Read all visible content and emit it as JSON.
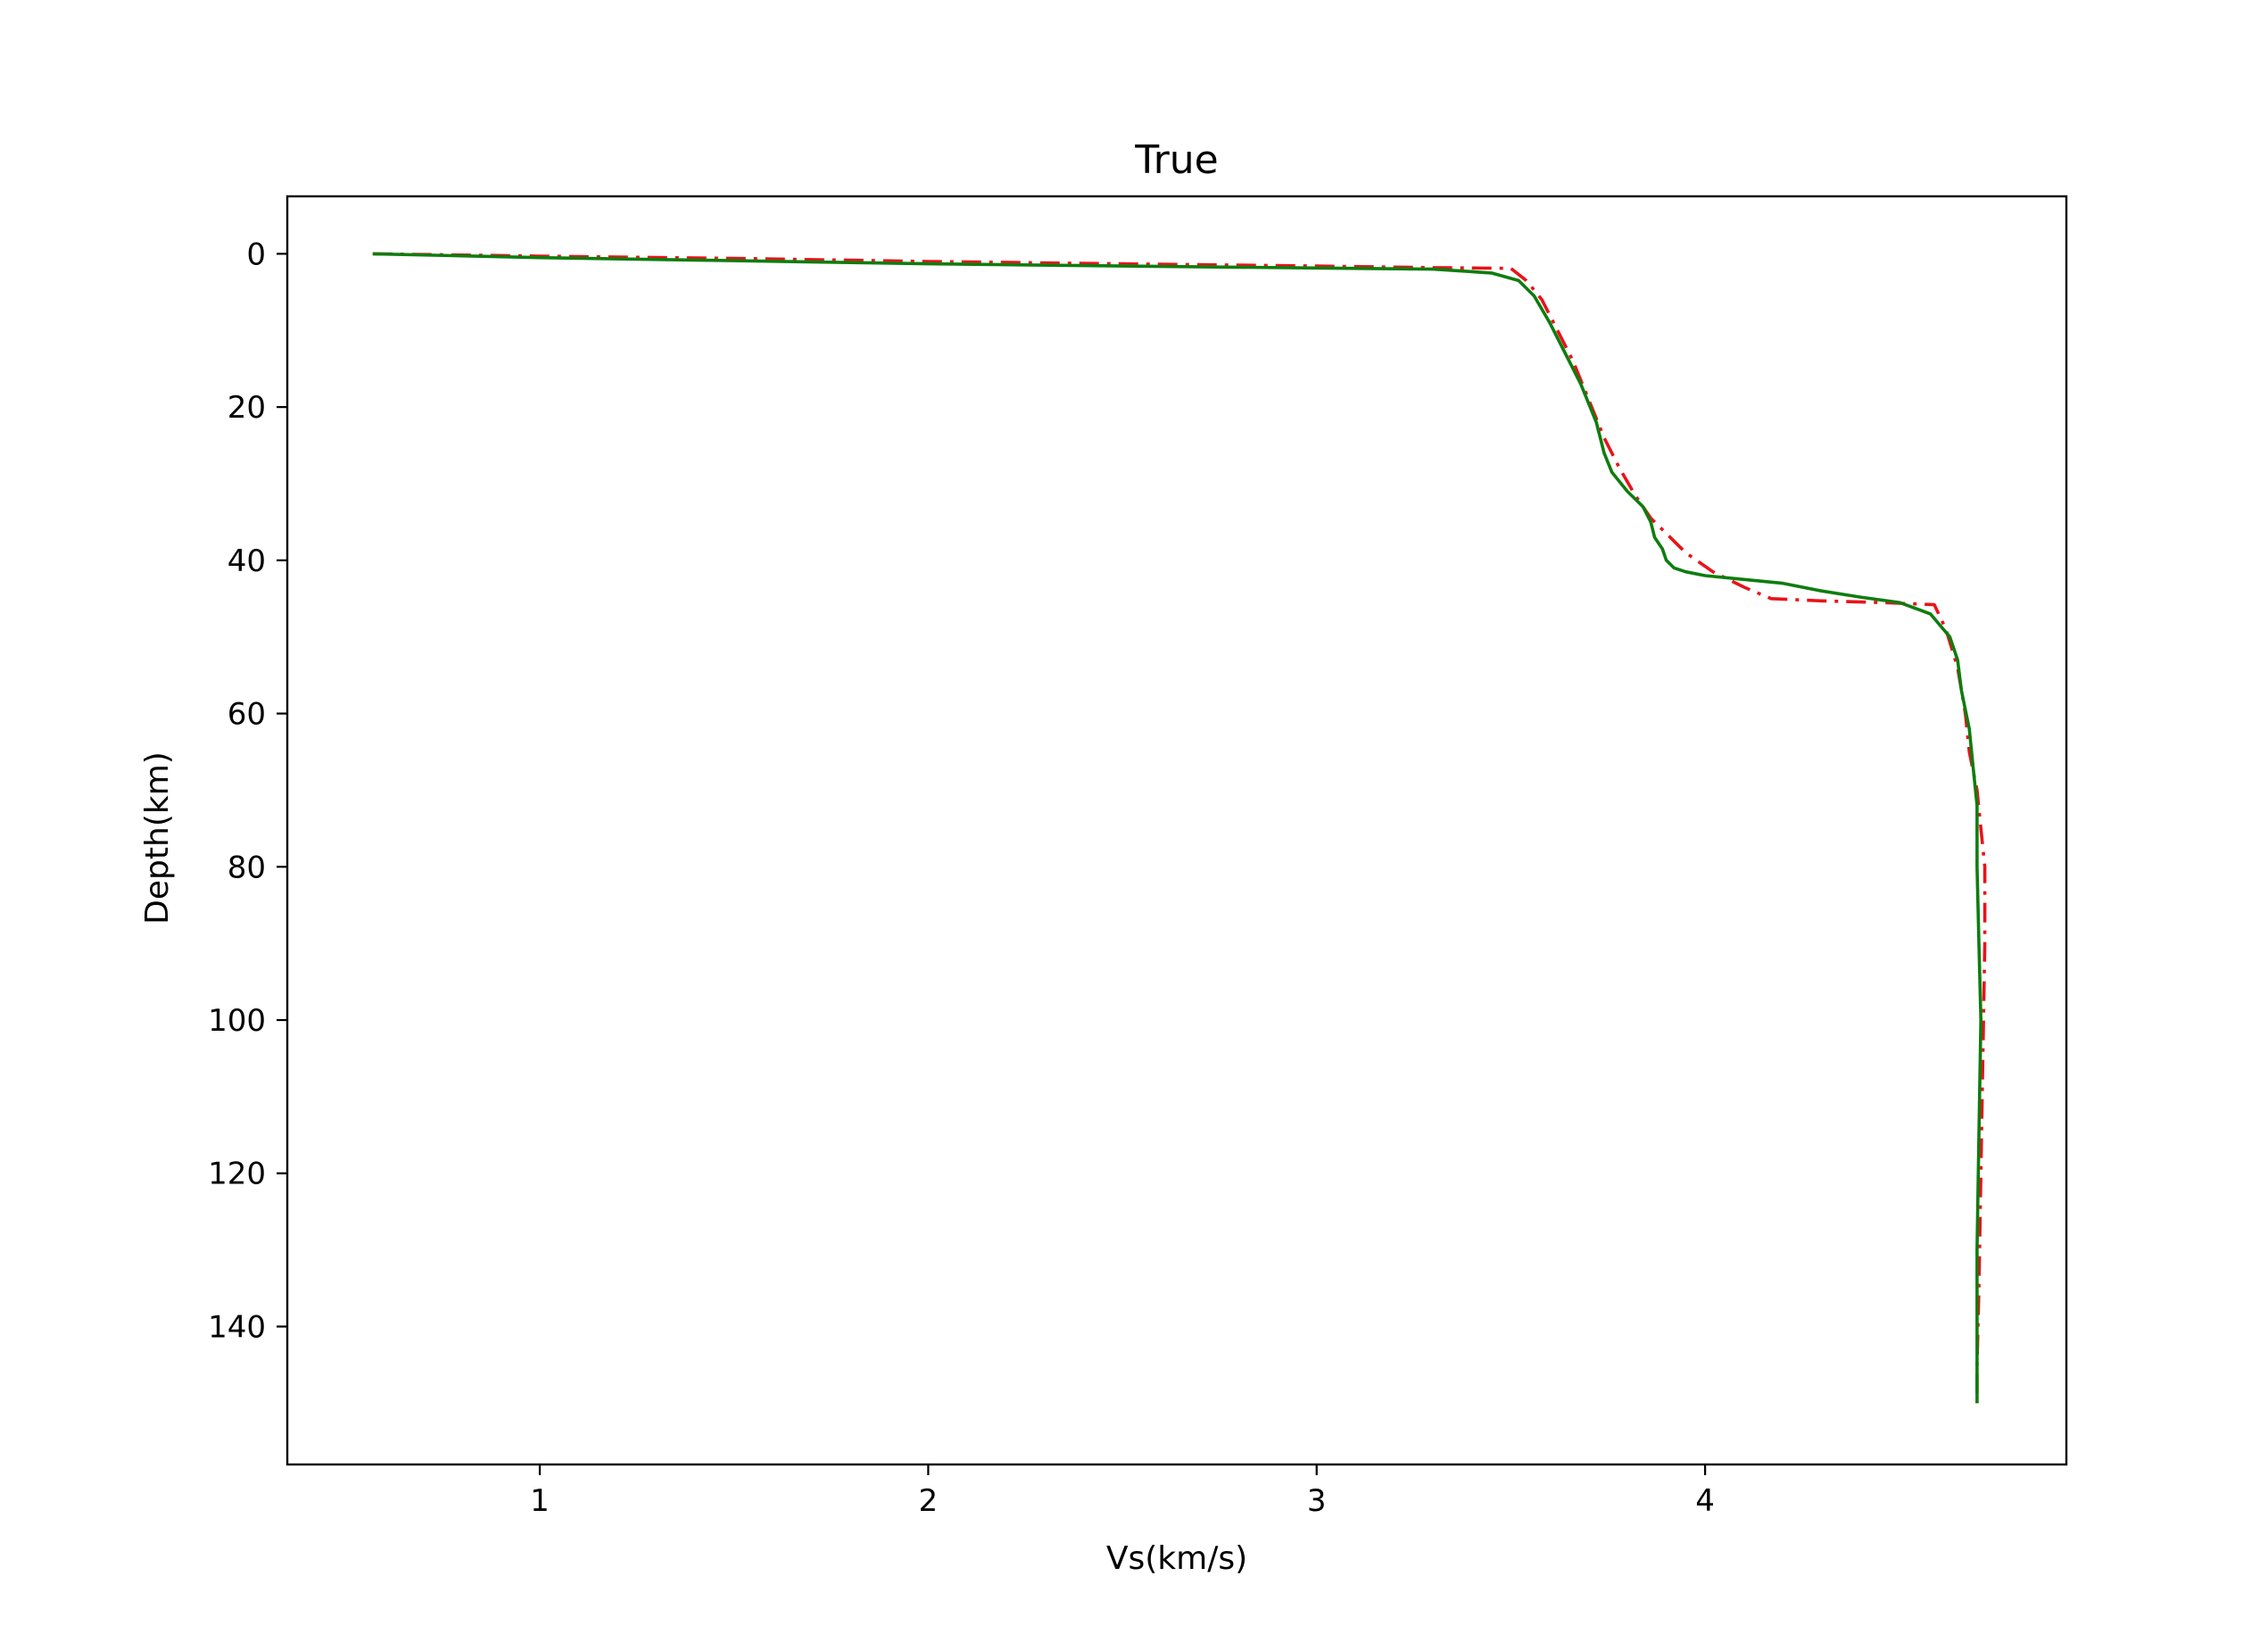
{
  "chart_data": {
    "type": "line",
    "title": "True",
    "xlabel": "Vs(km/s)",
    "ylabel": "Depth(km)",
    "xlim": [
      0.35,
      4.93
    ],
    "ylim": [
      158,
      -7.5
    ],
    "y_inverted": true,
    "grid": false,
    "xticks": [
      1,
      2,
      3,
      4
    ],
    "yticks": [
      0,
      20,
      40,
      60,
      80,
      100,
      120,
      140
    ],
    "colors": {
      "red_series": "#e8131b",
      "green_series": "#0e7d0e"
    },
    "series": [
      {
        "style": "dashdot",
        "color": "#e8131b",
        "x": [
          0.57,
          1.0,
          1.5,
          2.0,
          2.5,
          3.0,
          3.3,
          3.5,
          3.54,
          3.58,
          3.62,
          3.66,
          3.7,
          3.74,
          3.78,
          3.82,
          3.86,
          3.9,
          3.95,
          4.02,
          4.1,
          4.17,
          4.3,
          4.45,
          4.59,
          4.62,
          4.65,
          4.67,
          4.68,
          4.7,
          4.71,
          4.72,
          4.72,
          4.715,
          4.71,
          4.705,
          4.7,
          4.7
        ],
        "y": [
          0.0,
          0.3,
          0.6,
          1.0,
          1.3,
          1.6,
          1.8,
          1.9,
          3.5,
          6.0,
          10.0,
          14.0,
          19.0,
          24.0,
          28.0,
          31.5,
          34.5,
          36.5,
          39.0,
          41.5,
          43.5,
          45.0,
          45.3,
          45.5,
          45.8,
          49.0,
          54.0,
          60.0,
          65.0,
          70.0,
          75.0,
          80.0,
          90.0,
          105.0,
          120.0,
          135.0,
          145.0,
          150.0
        ]
      },
      {
        "style": "solid",
        "color": "#0e7d0e",
        "x": [
          0.57,
          1.0,
          1.5,
          2.0,
          2.5,
          3.0,
          3.3,
          3.45,
          3.52,
          3.56,
          3.6,
          3.64,
          3.68,
          3.72,
          3.74,
          3.76,
          3.8,
          3.84,
          3.86,
          3.87,
          3.89,
          3.9,
          3.92,
          3.95,
          4.0,
          4.1,
          4.2,
          4.3,
          4.4,
          4.5,
          4.58,
          4.63,
          4.65,
          4.66,
          4.68,
          4.69,
          4.7,
          4.7,
          4.705,
          4.71,
          4.705,
          4.7,
          4.7,
          4.7
        ],
        "y": [
          0.0,
          0.5,
          0.9,
          1.3,
          1.6,
          1.85,
          2.0,
          2.5,
          3.5,
          5.5,
          9.0,
          13.0,
          17.0,
          22.0,
          26.0,
          28.5,
          31.0,
          33.0,
          35.0,
          37.0,
          38.5,
          40.0,
          41.0,
          41.5,
          42.0,
          42.5,
          43.0,
          44.0,
          44.8,
          45.5,
          47.0,
          50.0,
          53.0,
          57.0,
          62.0,
          67.0,
          72.0,
          80.0,
          90.0,
          100.0,
          115.0,
          130.0,
          145.0,
          150.0
        ]
      }
    ]
  }
}
